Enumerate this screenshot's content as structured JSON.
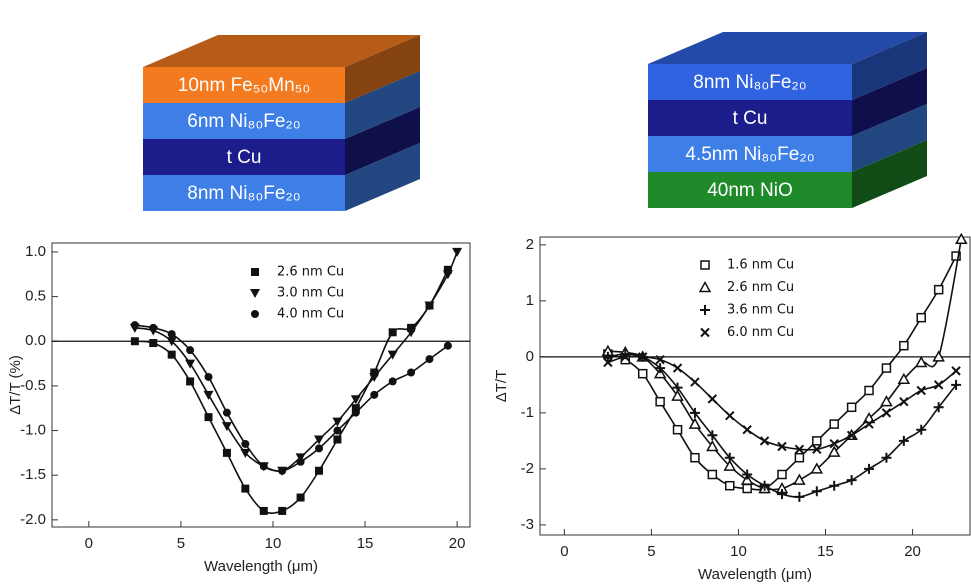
{
  "stacks": [
    {
      "layers": [
        {
          "label": "10nm Fe₅₀Mn₅₀",
          "color": "#f47a20"
        },
        {
          "label": "6nm Ni₈₀Fe₂₀",
          "color": "#3d7fe6"
        },
        {
          "label": "t Cu",
          "color": "#1c1c8a"
        },
        {
          "label": "8nm Ni₈₀Fe₂₀",
          "color": "#3d7fe6"
        }
      ]
    },
    {
      "layers": [
        {
          "label": "8nm Ni₈₀Fe₂₀",
          "color": "#2f63e0"
        },
        {
          "label": "t Cu",
          "color": "#1c1c8a"
        },
        {
          "label": "4.5nm Ni₈₀Fe₂₀",
          "color": "#3d7fe6"
        },
        {
          "label": "40nm NiO",
          "color": "#1f8a2a"
        }
      ]
    }
  ],
  "chart_data": [
    {
      "type": "scatter",
      "xlabel": "Wavelength (μm)",
      "ylabel": "ΔT/T (%)",
      "xlim": [
        -2,
        20.7
      ],
      "ylim": [
        -2.08,
        1.1
      ],
      "xticks": [
        0,
        5,
        10,
        15,
        20
      ],
      "yticks": [
        {
          "value": 1,
          "label": "1.0"
        },
        {
          "value": 0.5,
          "label": "0.5"
        },
        {
          "value": 0,
          "label": "0.0"
        },
        -0.5,
        {
          "value": -1,
          "label": "-1.0"
        },
        -1.5,
        {
          "value": -2,
          "label": "-2.0"
        }
      ],
      "reference_line": 0,
      "legend": "upper center",
      "grid": false,
      "series": [
        {
          "name": "2.6 nm Cu",
          "marker": "square",
          "color": "#111",
          "x": [
            2.5,
            3.5,
            4.5,
            5.5,
            6.5,
            7.5,
            8.5,
            9.5,
            10.5,
            11.5,
            12.5,
            13.5,
            14.5,
            15.5,
            16.5,
            17.5,
            18.5,
            19.5
          ],
          "values": [
            0,
            -0.02,
            -0.15,
            -0.45,
            -0.85,
            -1.25,
            -1.65,
            -1.9,
            -1.9,
            -1.75,
            -1.45,
            -1.1,
            -0.75,
            -0.35,
            0.1,
            0.15,
            0.4,
            0.8
          ]
        },
        {
          "name": "3.0 nm Cu",
          "marker": "triangle-down",
          "color": "#111",
          "x": [
            2.5,
            3.5,
            4.5,
            5.5,
            6.5,
            7.5,
            8.5,
            9.5,
            10.5,
            11.5,
            12.5,
            13.5,
            14.5,
            15.5,
            16.5,
            17.5,
            18.5,
            19.5,
            20
          ],
          "values": [
            0.15,
            0.12,
            0,
            -0.25,
            -0.6,
            -0.95,
            -1.25,
            -1.4,
            -1.45,
            -1.3,
            -1.1,
            -0.9,
            -0.65,
            -0.4,
            -0.15,
            0.1,
            0.4,
            0.75,
            1
          ]
        },
        {
          "name": "4.0 nm Cu",
          "marker": "circle",
          "color": "#111",
          "x": [
            2.5,
            3.5,
            4.5,
            5.5,
            6.5,
            7.5,
            8.5,
            9.5,
            10.5,
            11.5,
            12.5,
            13.5,
            14.5,
            15.5,
            16.5,
            17.5,
            18.5,
            19.5
          ],
          "values": [
            0.18,
            0.15,
            0.08,
            -0.1,
            -0.4,
            -0.8,
            -1.15,
            -1.4,
            -1.45,
            -1.35,
            -1.2,
            -1,
            -0.8,
            -0.6,
            -0.45,
            -0.35,
            -0.2,
            -0.05
          ]
        }
      ]
    },
    {
      "type": "scatter",
      "xlabel": "Wavelength (μm)",
      "ylabel": "ΔT/T",
      "xlim": [
        -1.4,
        23.3
      ],
      "ylim": [
        -3.18,
        2.14
      ],
      "xticks": [
        0,
        5,
        10,
        15,
        20
      ],
      "yticks": [
        2,
        1,
        0,
        -1,
        -2,
        -3
      ],
      "reference_line": 0,
      "legend": "upper center",
      "grid": false,
      "series": [
        {
          "name": "1.6 nm Cu",
          "marker": "open-square",
          "color": "#111",
          "x": [
            2.5,
            3.5,
            4.5,
            5.5,
            6.5,
            7.5,
            8.5,
            9.5,
            10.5,
            11.5,
            12.5,
            13.5,
            14.5,
            15.5,
            16.5,
            17.5,
            18.5,
            19.5,
            20.5,
            21.5,
            22.5
          ],
          "values": [
            0.05,
            -0.05,
            -0.3,
            -0.8,
            -1.3,
            -1.8,
            -2.1,
            -2.3,
            -2.35,
            -2.35,
            -2.1,
            -1.8,
            -1.5,
            -1.2,
            -0.9,
            -0.6,
            -0.2,
            0.2,
            0.7,
            1.2,
            1.8
          ]
        },
        {
          "name": "2.6 nm Cu",
          "marker": "open-triangle",
          "color": "#111",
          "x": [
            2.5,
            3.5,
            4.5,
            5.5,
            6.5,
            7.5,
            8.5,
            9.5,
            10.5,
            11.5,
            12.5,
            13.5,
            14.5,
            15.5,
            16.5,
            17.5,
            18.5,
            19.5,
            20.5,
            21.5,
            22.8
          ],
          "values": [
            0.1,
            0.08,
            0,
            -0.3,
            -0.7,
            -1.2,
            -1.6,
            -1.95,
            -2.2,
            -2.35,
            -2.35,
            -2.2,
            -2,
            -1.7,
            -1.4,
            -1.1,
            -0.8,
            -0.4,
            -0.1,
            0,
            2.1
          ]
        },
        {
          "name": "3.6 nm Cu",
          "marker": "plus",
          "color": "#111",
          "x": [
            2.5,
            3.5,
            4.5,
            5.5,
            6.5,
            7.5,
            8.5,
            9.5,
            10.5,
            11.5,
            12.5,
            13.5,
            14.5,
            15.5,
            16.5,
            17.5,
            18.5,
            19.5,
            20.5,
            21.5,
            22.5
          ],
          "values": [
            0,
            0.05,
            0,
            -0.2,
            -0.55,
            -1,
            -1.4,
            -1.8,
            -2.1,
            -2.3,
            -2.45,
            -2.5,
            -2.4,
            -2.3,
            -2.2,
            -2,
            -1.8,
            -1.5,
            -1.3,
            -0.9,
            -0.5
          ]
        },
        {
          "name": "6.0 nm Cu",
          "marker": "x",
          "color": "#111",
          "x": [
            2.5,
            3.5,
            4.5,
            5.5,
            6.5,
            7.5,
            8.5,
            9.5,
            10.5,
            11.5,
            12.5,
            13.5,
            14.5,
            15.5,
            16.5,
            17.5,
            18.5,
            19.5,
            20.5,
            21.5,
            22.5
          ],
          "values": [
            -0.1,
            0,
            0,
            -0.05,
            -0.2,
            -0.45,
            -0.75,
            -1.05,
            -1.3,
            -1.5,
            -1.6,
            -1.65,
            -1.65,
            -1.55,
            -1.4,
            -1.2,
            -1,
            -0.8,
            -0.6,
            -0.5,
            -0.25
          ]
        }
      ]
    }
  ]
}
